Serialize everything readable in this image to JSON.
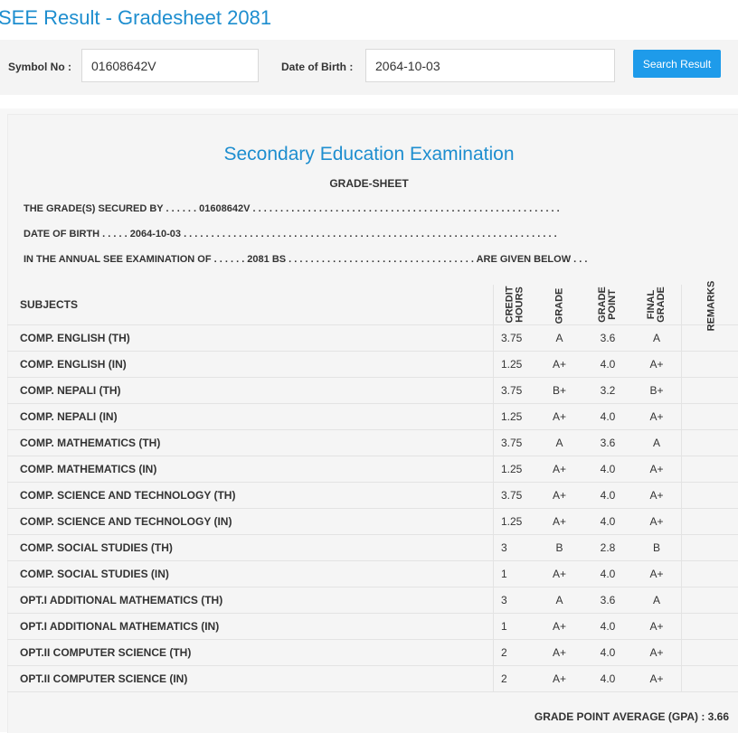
{
  "page": {
    "heading": "SEE Result - Gradesheet 2081"
  },
  "search": {
    "symbol_label": "Symbol No :",
    "symbol_value": "01608642V",
    "dob_label": "Date of Birth :",
    "dob_value": "2064-10-03",
    "button_label": "Search Result"
  },
  "sheet": {
    "title": "Secondary Education Examination",
    "subtitle": "GRADE-SHEET",
    "line_secured": "THE GRADE(S) SECURED BY . . . . . . 01608642V . . . . . . . . . . . . . . . . . . . . . . . . . . . . . . . . . . . . . . . . . . . . . . . . . . . . . . . .",
    "line_dob": "DATE OF BIRTH . . . . . 2064-10-03 . . . . . . . . . . . . . . . . . . . . . . . . . . . . . . . . . . . . . . . . . . . . . . . . . . . . . . . . . . . . . . . . . . . .",
    "line_exam": "IN THE ANNUAL SEE EXAMINATION OF . . . . . . 2081 BS . . . . . . . . . . . . . . . . . . . . . . . . . . . . . . . . . . ARE GIVEN BELOW . . .",
    "headers": {
      "subjects": "SUBJECTS",
      "credit_hours": "CREDIT\nHOURS",
      "grade": "GRADE",
      "grade_point": "GRADE\nPOINT",
      "final_grade": "FINAL\nGRADE",
      "remarks": "REMARKS"
    },
    "rows": [
      {
        "subject": "COMP. ENGLISH (TH)",
        "credit": "3.75",
        "grade": "A",
        "gp": "3.6",
        "final": "A",
        "remarks": ""
      },
      {
        "subject": "COMP. ENGLISH (IN)",
        "credit": "1.25",
        "grade": "A+",
        "gp": "4.0",
        "final": "A+",
        "remarks": ""
      },
      {
        "subject": "COMP. NEPALI (TH)",
        "credit": "3.75",
        "grade": "B+",
        "gp": "3.2",
        "final": "B+",
        "remarks": ""
      },
      {
        "subject": "COMP. NEPALI (IN)",
        "credit": "1.25",
        "grade": "A+",
        "gp": "4.0",
        "final": "A+",
        "remarks": ""
      },
      {
        "subject": "COMP. MATHEMATICS (TH)",
        "credit": "3.75",
        "grade": "A",
        "gp": "3.6",
        "final": "A",
        "remarks": ""
      },
      {
        "subject": "COMP. MATHEMATICS (IN)",
        "credit": "1.25",
        "grade": "A+",
        "gp": "4.0",
        "final": "A+",
        "remarks": ""
      },
      {
        "subject": "COMP. SCIENCE AND TECHNOLOGY (TH)",
        "credit": "3.75",
        "grade": "A+",
        "gp": "4.0",
        "final": "A+",
        "remarks": ""
      },
      {
        "subject": "COMP. SCIENCE AND TECHNOLOGY (IN)",
        "credit": "1.25",
        "grade": "A+",
        "gp": "4.0",
        "final": "A+",
        "remarks": ""
      },
      {
        "subject": "COMP. SOCIAL STUDIES (TH)",
        "credit": "3",
        "grade": "B",
        "gp": "2.8",
        "final": "B",
        "remarks": ""
      },
      {
        "subject": "COMP. SOCIAL STUDIES (IN)",
        "credit": "1",
        "grade": "A+",
        "gp": "4.0",
        "final": "A+",
        "remarks": ""
      },
      {
        "subject": "OPT.I ADDITIONAL MATHEMATICS (TH)",
        "credit": "3",
        "grade": "A",
        "gp": "3.6",
        "final": "A",
        "remarks": ""
      },
      {
        "subject": "OPT.I ADDITIONAL MATHEMATICS (IN)",
        "credit": "1",
        "grade": "A+",
        "gp": "4.0",
        "final": "A+",
        "remarks": ""
      },
      {
        "subject": "OPT.II COMPUTER SCIENCE (TH)",
        "credit": "2",
        "grade": "A+",
        "gp": "4.0",
        "final": "A+",
        "remarks": ""
      },
      {
        "subject": "OPT.II COMPUTER SCIENCE (IN)",
        "credit": "2",
        "grade": "A+",
        "gp": "4.0",
        "final": "A+",
        "remarks": ""
      }
    ],
    "gpa_text": "GRADE POINT AVERAGE (GPA) : 3.66"
  },
  "colors": {
    "accent": "#1e8ecf",
    "button": "#1e9bea"
  }
}
